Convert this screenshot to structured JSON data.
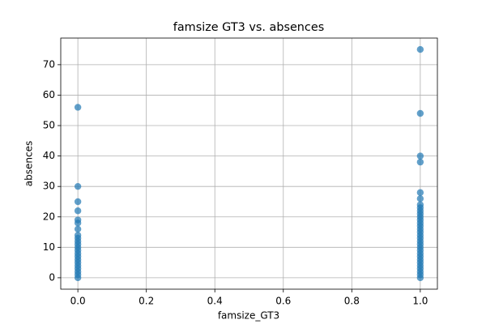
{
  "chart_data": {
    "type": "scatter",
    "title": "famsize GT3 vs. absences",
    "xlabel": "famsize_GT3",
    "ylabel": "absences",
    "x": [
      0,
      0,
      0,
      0,
      0,
      0,
      0,
      0,
      0,
      0,
      0,
      0,
      0,
      0,
      0,
      0,
      0,
      0,
      0,
      0,
      0,
      0,
      1,
      1,
      1,
      1,
      1,
      1,
      1,
      1,
      1,
      1,
      1,
      1,
      1,
      1,
      1,
      1,
      1,
      1,
      1,
      1,
      1,
      1,
      1,
      1,
      1,
      1,
      1,
      1,
      1,
      1,
      1
    ],
    "values": [
      0,
      1,
      2,
      3,
      4,
      5,
      6,
      7,
      8,
      9,
      10,
      11,
      12,
      13,
      14,
      16,
      18,
      19,
      22,
      25,
      30,
      56,
      0,
      1,
      2,
      3,
      4,
      5,
      6,
      7,
      8,
      9,
      10,
      11,
      12,
      13,
      14,
      15,
      16,
      17,
      18,
      19,
      20,
      21,
      22,
      23,
      24,
      26,
      28,
      38,
      40,
      54,
      75
    ],
    "color": "#1f77b4",
    "xlim": [
      -0.05,
      1.05
    ],
    "ylim": [
      -3.75,
      78.75
    ],
    "xticks": [
      {
        "value": 0,
        "label": "0.0"
      },
      {
        "value": 0.2,
        "label": "0.2"
      },
      {
        "value": 0.4,
        "label": "0.4"
      },
      {
        "value": 0.6,
        "label": "0.6"
      },
      {
        "value": 0.8,
        "label": "0.8"
      },
      {
        "value": 1,
        "label": "1.0"
      }
    ],
    "yticks": [
      0,
      10,
      20,
      30,
      40,
      50,
      60,
      70
    ],
    "grid": true
  }
}
